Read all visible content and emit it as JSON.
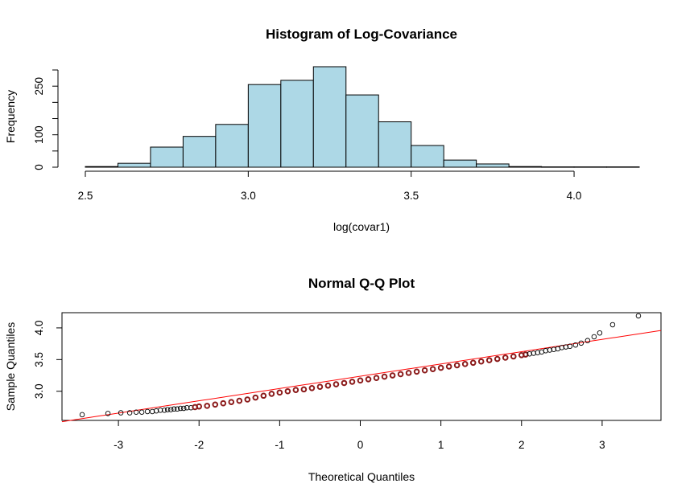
{
  "chart_data": [
    {
      "type": "bar",
      "title": "Histogram of Log-Covariance",
      "xlabel": "log(covar1)",
      "ylabel": "Frequency",
      "bin_edges": [
        2.5,
        2.6,
        2.7,
        2.8,
        2.9,
        3.0,
        3.1,
        3.2,
        3.3,
        3.4,
        3.5,
        3.6,
        3.7,
        3.8,
        3.9,
        4.0,
        4.1,
        4.2
      ],
      "values": [
        2,
        12,
        62,
        95,
        132,
        255,
        268,
        310,
        223,
        140,
        67,
        22,
        10,
        2,
        1,
        1,
        1
      ],
      "xlim": [
        2.5,
        4.2
      ],
      "ylim": [
        0,
        310
      ],
      "xticks": [
        "2.5",
        "3.0",
        "3.5",
        "4.0"
      ],
      "xtick_values": [
        2.5,
        3.0,
        3.5,
        4.0
      ],
      "yticks": [
        "0",
        "100",
        "250"
      ],
      "ytick_values": [
        0,
        100,
        250
      ],
      "ytick_minor_values": [
        50,
        150,
        200,
        300
      ],
      "bar_color": "#add8e6",
      "grid": false
    },
    {
      "type": "scatter",
      "title": "Normal Q-Q Plot",
      "xlabel": "Theoretical Quantiles",
      "ylabel": "Sample Quantiles",
      "xlim": [
        -3.7,
        3.73
      ],
      "ylim": [
        2.54,
        4.24
      ],
      "xticks": [
        "-3",
        "-2",
        "-1",
        "0",
        "1",
        "2",
        "3"
      ],
      "xtick_values": [
        -3,
        -2,
        -1,
        0,
        1,
        2,
        3
      ],
      "yticks": [
        "3.0",
        "3.5",
        "4.0"
      ],
      "ytick_values": [
        3.0,
        3.5,
        4.0
      ],
      "points": [
        [
          -3.45,
          2.63
        ],
        [
          -3.13,
          2.65
        ],
        [
          -2.97,
          2.66
        ],
        [
          -2.86,
          2.66
        ],
        [
          -2.78,
          2.67
        ],
        [
          -2.71,
          2.67
        ],
        [
          -2.64,
          2.68
        ],
        [
          -2.58,
          2.68
        ],
        [
          -2.53,
          2.69
        ],
        [
          -2.48,
          2.7
        ],
        [
          -2.43,
          2.7
        ],
        [
          -2.39,
          2.71
        ],
        [
          -2.35,
          2.71
        ],
        [
          -2.31,
          2.72
        ],
        [
          -2.27,
          2.72
        ],
        [
          -2.23,
          2.73
        ],
        [
          -2.19,
          2.73
        ],
        [
          -2.15,
          2.74
        ],
        [
          -2.1,
          2.74
        ],
        [
          -2.05,
          2.75
        ],
        [
          -2.0,
          2.76
        ],
        [
          -1.9,
          2.77
        ],
        [
          -1.8,
          2.79
        ],
        [
          -1.7,
          2.81
        ],
        [
          -1.6,
          2.83
        ],
        [
          -1.5,
          2.85
        ],
        [
          -1.4,
          2.87
        ],
        [
          -1.3,
          2.9
        ],
        [
          -1.2,
          2.93
        ],
        [
          -1.1,
          2.96
        ],
        [
          -1.0,
          2.98
        ],
        [
          -0.9,
          3.0
        ],
        [
          -0.8,
          3.02
        ],
        [
          -0.7,
          3.03
        ],
        [
          -0.6,
          3.05
        ],
        [
          -0.5,
          3.07
        ],
        [
          -0.4,
          3.09
        ],
        [
          -0.3,
          3.11
        ],
        [
          -0.2,
          3.13
        ],
        [
          -0.1,
          3.15
        ],
        [
          0.0,
          3.17
        ],
        [
          0.1,
          3.19
        ],
        [
          0.2,
          3.21
        ],
        [
          0.3,
          3.23
        ],
        [
          0.4,
          3.25
        ],
        [
          0.5,
          3.27
        ],
        [
          0.6,
          3.29
        ],
        [
          0.7,
          3.31
        ],
        [
          0.8,
          3.33
        ],
        [
          0.9,
          3.35
        ],
        [
          1.0,
          3.37
        ],
        [
          1.1,
          3.39
        ],
        [
          1.2,
          3.41
        ],
        [
          1.3,
          3.43
        ],
        [
          1.4,
          3.45
        ],
        [
          1.5,
          3.47
        ],
        [
          1.6,
          3.49
        ],
        [
          1.7,
          3.51
        ],
        [
          1.8,
          3.53
        ],
        [
          1.9,
          3.55
        ],
        [
          2.0,
          3.57
        ],
        [
          2.05,
          3.58
        ],
        [
          2.1,
          3.59
        ],
        [
          2.15,
          3.6
        ],
        [
          2.2,
          3.61
        ],
        [
          2.25,
          3.62
        ],
        [
          2.3,
          3.64
        ],
        [
          2.35,
          3.65
        ],
        [
          2.4,
          3.66
        ],
        [
          2.45,
          3.67
        ],
        [
          2.5,
          3.69
        ],
        [
          2.55,
          3.7
        ],
        [
          2.6,
          3.71
        ],
        [
          2.67,
          3.73
        ],
        [
          2.74,
          3.76
        ],
        [
          2.82,
          3.8
        ],
        [
          2.9,
          3.86
        ],
        [
          2.97,
          3.92
        ],
        [
          3.13,
          4.05
        ],
        [
          3.45,
          4.19
        ]
      ],
      "reference_line": {
        "x": [
          -3.7,
          3.73
        ],
        "y": [
          2.52,
          3.96
        ]
      },
      "point_color": "#000000",
      "dense_point_color": "#8b1a1a",
      "line_color": "#ff0000",
      "grid": false
    }
  ]
}
